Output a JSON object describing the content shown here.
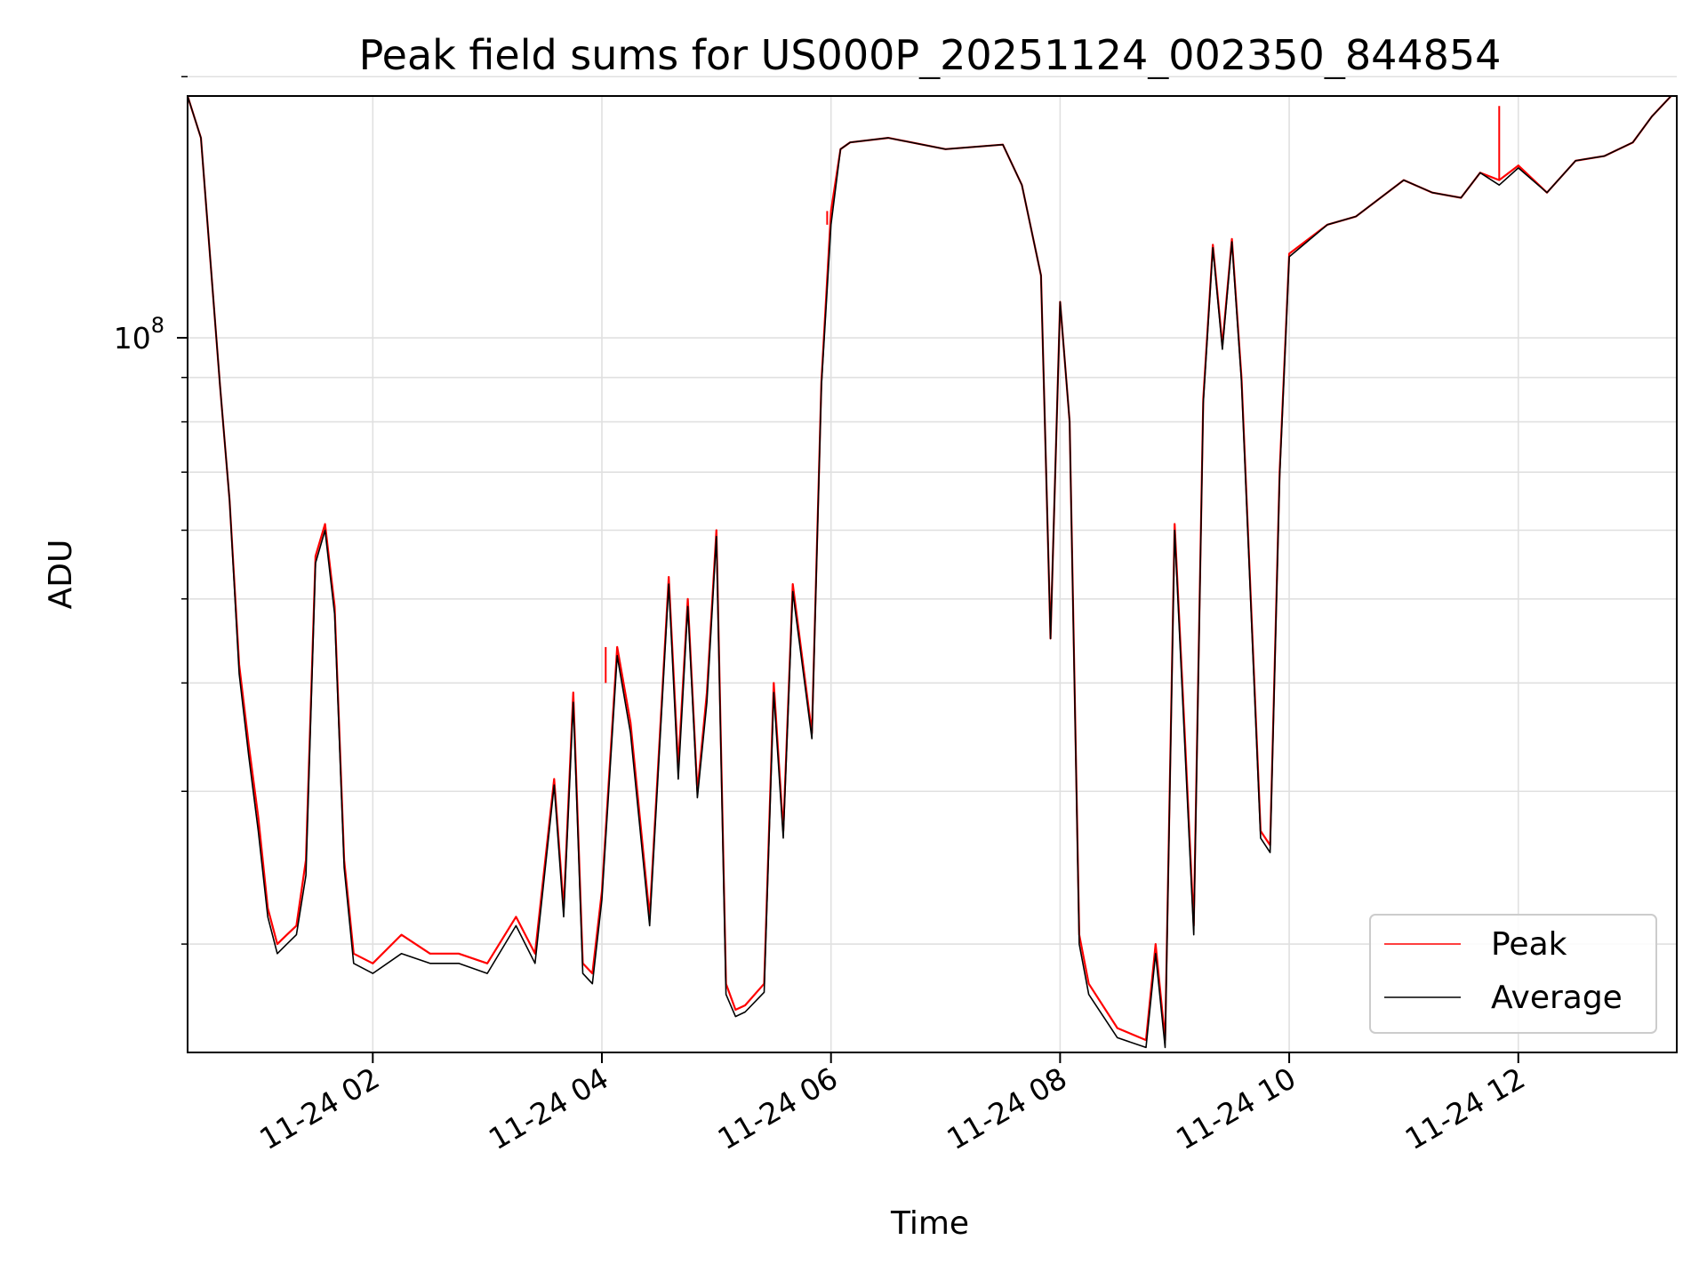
{
  "chart_data": {
    "type": "line",
    "title": "Peak field sums for US000P_20251124_002350_844854",
    "xlabel": "Time",
    "ylabel": "ADU",
    "y_scale": "log",
    "ylim": [
      15000000,
      190000000
    ],
    "xlim": [
      "2025-11-24 00:23",
      "2025-11-24 13:23"
    ],
    "x_ticks": [
      {
        "value": "2025-11-24 02:00",
        "label": "11-24 02"
      },
      {
        "value": "2025-11-24 04:00",
        "label": "11-24 04"
      },
      {
        "value": "2025-11-24 06:00",
        "label": "11-24 06"
      },
      {
        "value": "2025-11-24 08:00",
        "label": "11-24 08"
      },
      {
        "value": "2025-11-24 10:00",
        "label": "11-24 10"
      },
      {
        "value": "2025-11-24 12:00",
        "label": "11-24 12"
      }
    ],
    "y_major_ticks": [
      {
        "value": 100000000,
        "base": "10",
        "exp": "8"
      }
    ],
    "y_minor_ticks": [
      20000000,
      30000000,
      40000000,
      50000000,
      60000000,
      70000000,
      80000000,
      90000000,
      200000000
    ],
    "grid": true,
    "legend_position": "lower-right",
    "x": [
      "2025-11-24 00:23",
      "2025-11-24 00:30",
      "2025-11-24 00:40",
      "2025-11-24 00:45",
      "2025-11-24 00:50",
      "2025-11-24 00:55",
      "2025-11-24 01:00",
      "2025-11-24 01:05",
      "2025-11-24 01:10",
      "2025-11-24 01:15",
      "2025-11-24 01:20",
      "2025-11-24 01:25",
      "2025-11-24 01:30",
      "2025-11-24 01:35",
      "2025-11-24 01:40",
      "2025-11-24 01:45",
      "2025-11-24 01:50",
      "2025-11-24 02:00",
      "2025-11-24 02:15",
      "2025-11-24 02:30",
      "2025-11-24 02:45",
      "2025-11-24 03:00",
      "2025-11-24 03:15",
      "2025-11-24 03:25",
      "2025-11-24 03:35",
      "2025-11-24 03:40",
      "2025-11-24 03:45",
      "2025-11-24 03:50",
      "2025-11-24 03:55",
      "2025-11-24 04:00",
      "2025-11-24 04:08",
      "2025-11-24 04:15",
      "2025-11-24 04:25",
      "2025-11-24 04:35",
      "2025-11-24 04:40",
      "2025-11-24 04:45",
      "2025-11-24 04:50",
      "2025-11-24 04:55",
      "2025-11-24 05:00",
      "2025-11-24 05:05",
      "2025-11-24 05:10",
      "2025-11-24 05:15",
      "2025-11-24 05:25",
      "2025-11-24 05:30",
      "2025-11-24 05:35",
      "2025-11-24 05:40",
      "2025-11-24 05:50",
      "2025-11-24 05:55",
      "2025-11-24 06:00",
      "2025-11-24 06:05",
      "2025-11-24 06:10",
      "2025-11-24 06:30",
      "2025-11-24 07:00",
      "2025-11-24 07:30",
      "2025-11-24 07:40",
      "2025-11-24 07:50",
      "2025-11-24 07:55",
      "2025-11-24 08:00",
      "2025-11-24 08:05",
      "2025-11-24 08:10",
      "2025-11-24 08:15",
      "2025-11-24 08:30",
      "2025-11-24 08:45",
      "2025-11-24 08:50",
      "2025-11-24 08:55",
      "2025-11-24 09:00",
      "2025-11-24 09:05",
      "2025-11-24 09:10",
      "2025-11-24 09:15",
      "2025-11-24 09:20",
      "2025-11-24 09:25",
      "2025-11-24 09:30",
      "2025-11-24 09:35",
      "2025-11-24 09:45",
      "2025-11-24 09:50",
      "2025-11-24 09:55",
      "2025-11-24 10:00",
      "2025-11-24 10:20",
      "2025-11-24 10:35",
      "2025-11-24 11:00",
      "2025-11-24 11:15",
      "2025-11-24 11:30",
      "2025-11-24 11:40",
      "2025-11-24 11:50",
      "2025-11-24 12:00",
      "2025-11-24 12:15",
      "2025-11-24 12:30",
      "2025-11-24 12:45",
      "2025-11-24 13:00",
      "2025-11-24 13:10",
      "2025-11-24 13:20"
    ],
    "series": [
      {
        "name": "Peak",
        "color": "#ff0000",
        "values": [
          190000000,
          170000000,
          88000000,
          65000000,
          42000000,
          34000000,
          28000000,
          22000000,
          20000000,
          20500000,
          21000000,
          25000000,
          56000000,
          61000000,
          49000000,
          25000000,
          19500000,
          19000000,
          20500000,
          19500000,
          19500000,
          19000000,
          21500000,
          19500000,
          31000000,
          22000000,
          39000000,
          19000000,
          18500000,
          23000000,
          44000000,
          36000000,
          21500000,
          53000000,
          32000000,
          50000000,
          30000000,
          39000000,
          60000000,
          18000000,
          16800000,
          17000000,
          18000000,
          40000000,
          27000000,
          52000000,
          35000000,
          89000000,
          140000000,
          165000000,
          168000000,
          170000000,
          165000000,
          167000000,
          150000000,
          118000000,
          45000000,
          110000000,
          80000000,
          20500000,
          18000000,
          16000000,
          15500000,
          20000000,
          15500000,
          61000000,
          36000000,
          21000000,
          85000000,
          128000000,
          98000000,
          130000000,
          90000000,
          27000000,
          26000000,
          70000000,
          125000000,
          135000000,
          138000000,
          152000000,
          147000000,
          145000000,
          155000000,
          152000000,
          158000000,
          147000000,
          160000000,
          162000000,
          168000000,
          180000000,
          190000000
        ]
      },
      {
        "name": "Average",
        "color": "#000000",
        "values": [
          190000000,
          170000000,
          88000000,
          65000000,
          41000000,
          33000000,
          27000000,
          21500000,
          19500000,
          20000000,
          20500000,
          24000000,
          55000000,
          60000000,
          48000000,
          24500000,
          19000000,
          18500000,
          19500000,
          19000000,
          19000000,
          18500000,
          21000000,
          19000000,
          30500000,
          21500000,
          38000000,
          18500000,
          18000000,
          22500000,
          43000000,
          35000000,
          21000000,
          52000000,
          31000000,
          49000000,
          29500000,
          38000000,
          59000000,
          17500000,
          16500000,
          16700000,
          17600000,
          39000000,
          26500000,
          51000000,
          34500000,
          88000000,
          135000000,
          165000000,
          168000000,
          170000000,
          165000000,
          167000000,
          150000000,
          118000000,
          45000000,
          110000000,
          80000000,
          20000000,
          17500000,
          15600000,
          15200000,
          19500000,
          15200000,
          60000000,
          35000000,
          20500000,
          84000000,
          127000000,
          97000000,
          129000000,
          89000000,
          26500000,
          25500000,
          69000000,
          124000000,
          135000000,
          138000000,
          152000000,
          147000000,
          145000000,
          155000000,
          150000000,
          157000000,
          147000000,
          160000000,
          162000000,
          168000000,
          180000000,
          190000000
        ]
      }
    ],
    "annotations": [
      {
        "series": "Peak",
        "x": "2025-11-24 05:58",
        "y": 135000000
      },
      {
        "series": "Peak",
        "x": "2025-11-24 04:02",
        "y": 40000000
      },
      {
        "series": "Peak",
        "x": "2025-11-24 11:50",
        "y": 185000000
      }
    ]
  }
}
